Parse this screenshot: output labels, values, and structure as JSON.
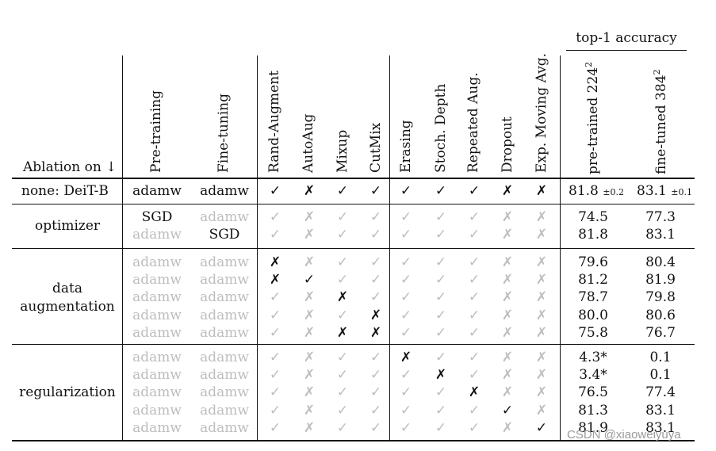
{
  "table": {
    "group_header": "top-1 accuracy",
    "col_headers": {
      "ablation": "Ablation on ↓",
      "pretraining": "Pre-training",
      "finetuning": "Fine-tuning",
      "aug": [
        "Rand-Augment",
        "AutoAug",
        "Mixup",
        "CutMix"
      ],
      "reg": [
        "Erasing",
        "Stoch. Depth",
        "Repeated Aug.",
        "Dropout",
        "Exp. Moving Avg."
      ],
      "acc_pre": "pre-trained 224",
      "acc_pre_sup": "2",
      "acc_ft": "fine-tuned 384",
      "acc_ft_sup": "2"
    },
    "baseline": {
      "label": "none: DeiT-B",
      "pretraining": "adamw",
      "finetuning": "adamw",
      "marks": [
        "✓",
        "✗",
        "✓",
        "✓",
        "✓",
        "✓",
        "✓",
        "✗",
        "✗"
      ],
      "acc_pre": "81.8",
      "acc_pre_pm": "±0.2",
      "acc_ft": "83.1",
      "acc_ft_pm": "±0.1"
    },
    "groups": [
      {
        "label_lines": [
          "optimizer"
        ],
        "rows": [
          {
            "pretraining": "SGD",
            "pre_hl": true,
            "finetuning": "adamw",
            "ft_hl": false,
            "marks": [
              "✓",
              "✗",
              "✓",
              "✓",
              "✓",
              "✓",
              "✓",
              "✗",
              "✗"
            ],
            "hl": [
              false,
              false,
              false,
              false,
              false,
              false,
              false,
              false,
              false
            ],
            "acc_pre": "74.5",
            "acc_ft": "77.3"
          },
          {
            "pretraining": "adamw",
            "pre_hl": false,
            "finetuning": "SGD",
            "ft_hl": true,
            "marks": [
              "✓",
              "✗",
              "✓",
              "✓",
              "✓",
              "✓",
              "✓",
              "✗",
              "✗"
            ],
            "hl": [
              false,
              false,
              false,
              false,
              false,
              false,
              false,
              false,
              false
            ],
            "acc_pre": "81.8",
            "acc_ft": "83.1"
          }
        ]
      },
      {
        "label_lines": [
          "data",
          "augmentation"
        ],
        "rows": [
          {
            "pretraining": "adamw",
            "pre_hl": false,
            "finetuning": "adamw",
            "ft_hl": false,
            "marks": [
              "✗",
              "✗",
              "✓",
              "✓",
              "✓",
              "✓",
              "✓",
              "✗",
              "✗"
            ],
            "hl": [
              true,
              false,
              false,
              false,
              false,
              false,
              false,
              false,
              false
            ],
            "acc_pre": "79.6",
            "acc_ft": "80.4"
          },
          {
            "pretraining": "adamw",
            "pre_hl": false,
            "finetuning": "adamw",
            "ft_hl": false,
            "marks": [
              "✗",
              "✓",
              "✓",
              "✓",
              "✓",
              "✓",
              "✓",
              "✗",
              "✗"
            ],
            "hl": [
              true,
              true,
              false,
              false,
              false,
              false,
              false,
              false,
              false
            ],
            "acc_pre": "81.2",
            "acc_ft": "81.9"
          },
          {
            "pretraining": "adamw",
            "pre_hl": false,
            "finetuning": "adamw",
            "ft_hl": false,
            "marks": [
              "✓",
              "✗",
              "✗",
              "✓",
              "✓",
              "✓",
              "✓",
              "✗",
              "✗"
            ],
            "hl": [
              false,
              false,
              true,
              false,
              false,
              false,
              false,
              false,
              false
            ],
            "acc_pre": "78.7",
            "acc_ft": "79.8"
          },
          {
            "pretraining": "adamw",
            "pre_hl": false,
            "finetuning": "adamw",
            "ft_hl": false,
            "marks": [
              "✓",
              "✗",
              "✓",
              "✗",
              "✓",
              "✓",
              "✓",
              "✗",
              "✗"
            ],
            "hl": [
              false,
              false,
              false,
              true,
              false,
              false,
              false,
              false,
              false
            ],
            "acc_pre": "80.0",
            "acc_ft": "80.6"
          },
          {
            "pretraining": "adamw",
            "pre_hl": false,
            "finetuning": "adamw",
            "ft_hl": false,
            "marks": [
              "✓",
              "✗",
              "✗",
              "✗",
              "✓",
              "✓",
              "✓",
              "✗",
              "✗"
            ],
            "hl": [
              false,
              false,
              true,
              true,
              false,
              false,
              false,
              false,
              false
            ],
            "acc_pre": "75.8",
            "acc_ft": "76.7"
          }
        ]
      },
      {
        "label_lines": [
          "regularization"
        ],
        "rows": [
          {
            "pretraining": "adamw",
            "pre_hl": false,
            "finetuning": "adamw",
            "ft_hl": false,
            "marks": [
              "✓",
              "✗",
              "✓",
              "✓",
              "✗",
              "✓",
              "✓",
              "✗",
              "✗"
            ],
            "hl": [
              false,
              false,
              false,
              false,
              true,
              false,
              false,
              false,
              false
            ],
            "acc_pre": "4.3*",
            "acc_ft": "0.1"
          },
          {
            "pretraining": "adamw",
            "pre_hl": false,
            "finetuning": "adamw",
            "ft_hl": false,
            "marks": [
              "✓",
              "✗",
              "✓",
              "✓",
              "✓",
              "✗",
              "✓",
              "✗",
              "✗"
            ],
            "hl": [
              false,
              false,
              false,
              false,
              false,
              true,
              false,
              false,
              false
            ],
            "acc_pre": "3.4*",
            "acc_ft": "0.1"
          },
          {
            "pretraining": "adamw",
            "pre_hl": false,
            "finetuning": "adamw",
            "ft_hl": false,
            "marks": [
              "✓",
              "✗",
              "✓",
              "✓",
              "✓",
              "✓",
              "✗",
              "✗",
              "✗"
            ],
            "hl": [
              false,
              false,
              false,
              false,
              false,
              false,
              true,
              false,
              false
            ],
            "acc_pre": "76.5",
            "acc_ft": "77.4"
          },
          {
            "pretraining": "adamw",
            "pre_hl": false,
            "finetuning": "adamw",
            "ft_hl": false,
            "marks": [
              "✓",
              "✗",
              "✓",
              "✓",
              "✓",
              "✓",
              "✓",
              "✓",
              "✗"
            ],
            "hl": [
              false,
              false,
              false,
              false,
              false,
              false,
              false,
              true,
              false
            ],
            "acc_pre": "81.3",
            "acc_ft": "83.1"
          },
          {
            "pretraining": "adamw",
            "pre_hl": false,
            "finetuning": "adamw",
            "ft_hl": false,
            "marks": [
              "✓",
              "✗",
              "✓",
              "✓",
              "✓",
              "✓",
              "✓",
              "✗",
              "✓"
            ],
            "hl": [
              false,
              false,
              false,
              false,
              false,
              false,
              false,
              false,
              true
            ],
            "acc_pre": "81.9",
            "acc_ft": "83.1"
          }
        ]
      }
    ]
  },
  "watermark": "CSDN @xiaoweiyuya"
}
